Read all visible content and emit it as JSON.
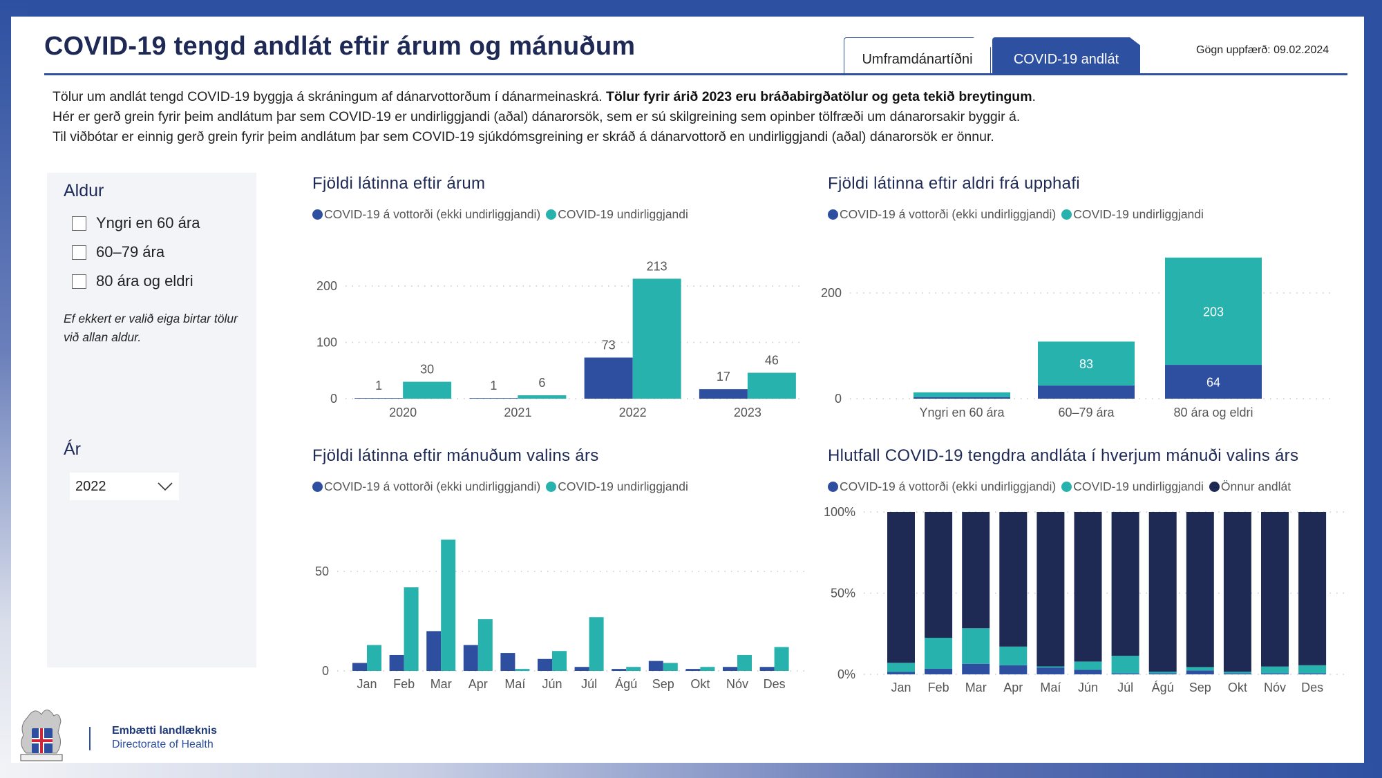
{
  "header": {
    "title": "COVID-19 tengd andlát eftir árum og mánuðum",
    "tabs": [
      {
        "label": "Umframdánartíðni",
        "active": false
      },
      {
        "label": "COVID-19 andlát",
        "active": true
      }
    ],
    "updated": "Gögn uppfærð: 09.02.2024"
  },
  "description": {
    "line1_a": "Tölur um andlát tengd COVID-19 byggja á skráningum af dánarvottorðum í dánarmeinaskrá. ",
    "line1_bold": "Tölur fyrir árið 2023 eru bráðabirgðatölur og geta tekið breytingum",
    "line1_end": ".",
    "line2": "Hér er gerð grein fyrir þeim andlátum þar sem COVID-19 er undirliggjandi (aðal) dánarorsök, sem er sú skilgreining sem opinber tölfræði um dánarorsakir byggir á.",
    "line3": "Til viðbótar er einnig gerð grein fyrir þeim andlátum þar sem COVID-19 sjúkdómsgreining er skráð á dánarvottorð en undirliggjandi (aðal) dánarorsök er önnur."
  },
  "filters": {
    "age_heading": "Aldur",
    "age_options": [
      {
        "label": "Yngri en 60 ára",
        "checked": false
      },
      {
        "label": "60–79 ára",
        "checked": false
      },
      {
        "label": "80 ára og eldri",
        "checked": false
      }
    ],
    "age_note": "Ef ekkert er valið eiga birtar tölur við allan aldur.",
    "year_heading": "Ár",
    "year_selected": "2022"
  },
  "colors": {
    "blue": "#2e4fa0",
    "teal": "#28b2ae",
    "navy": "#1f2a54",
    "axis_text": "#555555"
  },
  "legend": {
    "certificate": "COVID-19 á vottorði (ekki undirliggjandi)",
    "underlying": "COVID-19 undirliggjandi",
    "other": "Önnur andlát"
  },
  "footer": {
    "org_is": "Embætti landlæknis",
    "org_en": "Directorate of Health"
  },
  "chart_data": [
    {
      "id": "by-year",
      "type": "bar",
      "title": "Fjöldi látinna eftir árum",
      "categories": [
        "2020",
        "2021",
        "2022",
        "2023"
      ],
      "series": [
        {
          "name": "COVID-19 á vottorði (ekki undirliggjandi)",
          "values": [
            1,
            1,
            73,
            17
          ]
        },
        {
          "name": "COVID-19 undirliggjandi",
          "values": [
            30,
            6,
            213,
            46
          ]
        }
      ],
      "yticks": [
        0,
        100,
        200
      ],
      "ylim": [
        0,
        230
      ],
      "data_labels": true,
      "grid": true,
      "legend_position": "top-left"
    },
    {
      "id": "by-age",
      "type": "bar",
      "stacked": true,
      "title": "Fjöldi látinna eftir aldri frá upphafi",
      "categories": [
        "Yngri en 60 ára",
        "60–79 ára",
        "80 ára og eldri"
      ],
      "series": [
        {
          "name": "COVID-19 á vottorði (ekki undirliggjandi)",
          "values": [
            3,
            25,
            64
          ],
          "labels": [
            null,
            null,
            "64"
          ]
        },
        {
          "name": "COVID-19 undirliggjandi",
          "values": [
            9,
            83,
            203
          ],
          "labels": [
            null,
            "83",
            "203"
          ]
        }
      ],
      "yticks": [
        0,
        200
      ],
      "ylim": [
        0,
        300
      ],
      "grid": true,
      "legend_position": "top-left"
    },
    {
      "id": "by-month",
      "type": "bar",
      "title": "Fjöldi látinna eftir mánuðum valins árs",
      "categories": [
        "Jan",
        "Feb",
        "Mar",
        "Apr",
        "Maí",
        "Jún",
        "Júl",
        "Ágú",
        "Sep",
        "Okt",
        "Nóv",
        "Des"
      ],
      "series": [
        {
          "name": "COVID-19 á vottorði (ekki undirliggjandi)",
          "values": [
            4,
            8,
            20,
            13,
            9,
            6,
            2,
            1,
            5,
            1,
            2,
            2
          ]
        },
        {
          "name": "COVID-19 undirliggjandi",
          "values": [
            13,
            42,
            66,
            26,
            1,
            10,
            27,
            2,
            4,
            2,
            8,
            12
          ]
        }
      ],
      "yticks": [
        0,
        50
      ],
      "ylim": [
        0,
        80
      ],
      "grid": true,
      "legend_position": "top-left"
    },
    {
      "id": "share-by-month",
      "type": "bar",
      "stacked": true,
      "percent": true,
      "title": "Hlutfall COVID-19 tengdra andláta í hverjum mánuði valins árs",
      "categories": [
        "Jan",
        "Feb",
        "Mar",
        "Apr",
        "Maí",
        "Jún",
        "Júl",
        "Ágú",
        "Sep",
        "Okt",
        "Nóv",
        "Des"
      ],
      "series": [
        {
          "name": "COVID-19 á vottorði (ekki undirliggjandi)",
          "values": [
            1.5,
            3.4,
            6.5,
            5.6,
            4.2,
            2.8,
            0.6,
            0.6,
            2.4,
            0.6,
            0.6,
            0.6
          ]
        },
        {
          "name": "COVID-19 undirliggjandi",
          "values": [
            5.6,
            19.1,
            21.9,
            11.5,
            0.7,
            5.1,
            10.8,
            1.0,
            2.1,
            1.0,
            4.2,
            5.0
          ]
        },
        {
          "name": "Önnur andlát",
          "values": [
            92.9,
            77.5,
            71.6,
            82.9,
            95.1,
            92.1,
            88.6,
            98.4,
            95.5,
            98.4,
            95.2,
            94.4
          ]
        }
      ],
      "yticks": [
        0,
        50,
        100
      ],
      "ytick_labels": [
        "0%",
        "50%",
        "100%"
      ],
      "ylim": [
        0,
        100
      ],
      "grid": true,
      "legend_position": "top-left"
    }
  ]
}
